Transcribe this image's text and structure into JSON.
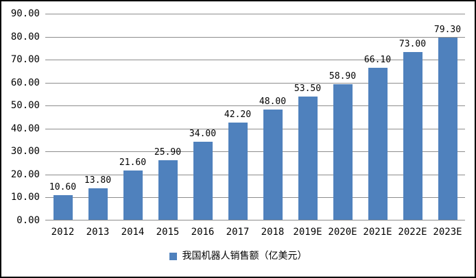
{
  "chart_data": {
    "type": "bar",
    "title": "",
    "legend": "我国机器人销售额（亿美元）",
    "legend_position": "bottom",
    "categories": [
      "2012",
      "2013",
      "2014",
      "2015",
      "2016",
      "2017",
      "2018",
      "2019E",
      "2020E",
      "2021E",
      "2022E",
      "2023E"
    ],
    "values": [
      10.6,
      13.8,
      21.6,
      25.9,
      34.0,
      42.2,
      48.0,
      53.5,
      58.9,
      66.1,
      73.0,
      79.3
    ],
    "value_labels": [
      "10.60",
      "13.80",
      "21.60",
      "25.90",
      "34.00",
      "42.20",
      "48.00",
      "53.50",
      "58.90",
      "66.10",
      "73.00",
      "79.30"
    ],
    "xlabel": "",
    "ylabel": "",
    "ylim": [
      0,
      90
    ],
    "y_tick_step": 10,
    "y_tick_labels": [
      "90.00",
      "80.00",
      "70.00",
      "60.00",
      "50.00",
      "40.00",
      "30.00",
      "20.00",
      "10.00",
      "0.00"
    ],
    "grid": "horizontal",
    "colors": {
      "bar": "#4F81BD",
      "gridline": "#8C8C8C",
      "axis_line": "#8C8C8C",
      "frame": "#000000",
      "background": "#FFFFFF",
      "text": "#000000"
    }
  }
}
